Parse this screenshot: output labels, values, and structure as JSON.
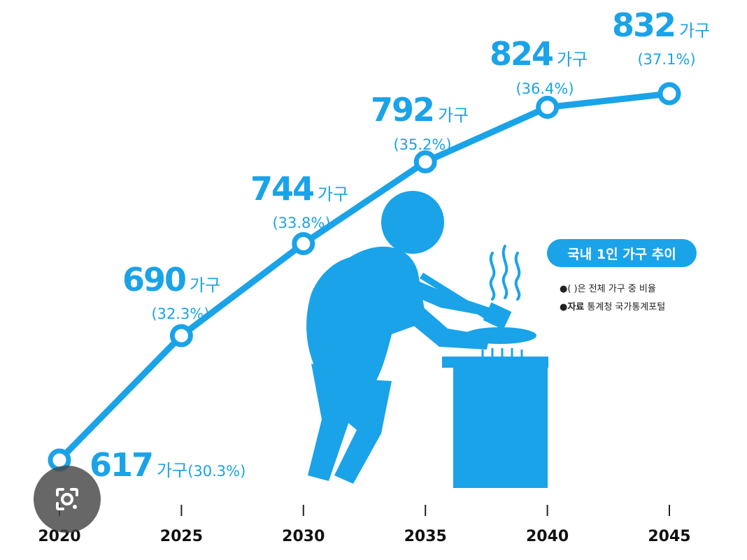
{
  "chart_data": {
    "type": "line",
    "title": "국내 1인 가구 추이",
    "x": [
      "2020",
      "2025",
      "2030",
      "2035",
      "2040",
      "2045"
    ],
    "values": [
      617,
      690,
      744,
      792,
      824,
      832
    ],
    "percent_labels": [
      "(30.3%)",
      "(32.3%)",
      "(33.8%)",
      "(35.2%)",
      "(36.4%)",
      "(37.1%)"
    ],
    "unit": "가구",
    "notes": {
      "bullet": "●",
      "note1": "( )은 전체 가구 중 비율",
      "note2_prefix": "자료",
      "note2_text": " 통계청 국가통계포털"
    },
    "grid": false
  },
  "colors": {
    "accent": "#1aa3e8",
    "text": "#111111"
  },
  "overlay": {
    "icon": "google-lens-icon"
  }
}
